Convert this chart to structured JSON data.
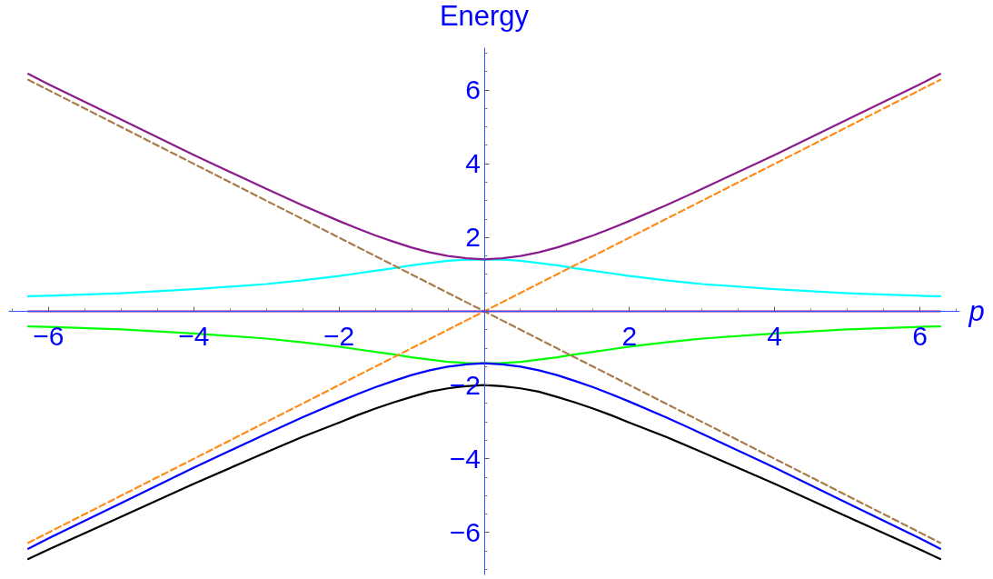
{
  "chart_data": {
    "type": "line",
    "xlabel": "p",
    "ylabel": "Energy",
    "x": [
      -6.28,
      -6,
      -5,
      -4,
      -3,
      -2.5,
      -2,
      -1.75,
      -1.5,
      -1.25,
      -1,
      -0.75,
      -0.5,
      -0.25,
      0,
      0.25,
      0.5,
      0.75,
      1,
      1.25,
      1.5,
      1.75,
      2,
      2.5,
      3,
      4,
      5,
      6,
      6.28
    ],
    "series": [
      {
        "color": "#00ffff",
        "values": [
          0.41,
          0.42,
          0.49,
          0.6,
          0.74,
          0.84,
          0.96,
          1.03,
          1.1,
          1.17,
          1.25,
          1.31,
          1.37,
          1.4,
          1.41,
          1.4,
          1.37,
          1.31,
          1.25,
          1.17,
          1.1,
          1.03,
          0.96,
          0.84,
          0.74,
          0.6,
          0.49,
          0.42,
          0.41
        ]
      },
      {
        "color": "#00ff00",
        "values": [
          -0.41,
          -0.42,
          -0.49,
          -0.6,
          -0.74,
          -0.84,
          -0.96,
          -1.03,
          -1.1,
          -1.17,
          -1.25,
          -1.31,
          -1.37,
          -1.4,
          -1.41,
          -1.4,
          -1.37,
          -1.31,
          -1.25,
          -1.17,
          -1.1,
          -1.03,
          -0.96,
          -0.84,
          -0.74,
          -0.6,
          -0.49,
          -0.42,
          -0.41
        ]
      },
      {
        "color": "#0000ff",
        "values": [
          -6.44,
          -6.16,
          -5.2,
          -4.24,
          -3.32,
          -2.87,
          -2.45,
          -2.25,
          -2.06,
          -1.89,
          -1.73,
          -1.6,
          -1.5,
          -1.44,
          -1.41,
          -1.44,
          -1.5,
          -1.6,
          -1.73,
          -1.89,
          -2.06,
          -2.25,
          -2.45,
          -2.87,
          -3.32,
          -4.24,
          -5.2,
          -6.16,
          -6.44
        ]
      },
      {
        "color": "#000000",
        "values": [
          -6.72,
          -6.46,
          -5.57,
          -4.68,
          -3.82,
          -3.4,
          -3.02,
          -2.82,
          -2.64,
          -2.47,
          -2.32,
          -2.18,
          -2.09,
          -2.03,
          -2.0,
          -2.03,
          -2.09,
          -2.18,
          -2.32,
          -2.47,
          -2.64,
          -2.82,
          -3.02,
          -3.4,
          -3.82,
          -4.68,
          -5.57,
          -6.46,
          -6.72
        ]
      },
      {
        "color": "#ff8c1a",
        "line_style": "dashed",
        "values": [
          -6.28,
          -6,
          -5,
          -4,
          -3,
          -2.5,
          -2,
          -1.75,
          -1.5,
          -1.25,
          -1,
          -0.75,
          -0.5,
          -0.25,
          0,
          0.25,
          0.5,
          0.75,
          1,
          1.25,
          1.5,
          1.75,
          2,
          2.5,
          3,
          4,
          5,
          6,
          6.28
        ]
      },
      {
        "color": "#a97b4b",
        "line_style": "dashed",
        "values": [
          6.28,
          6,
          5,
          4,
          3,
          2.5,
          2,
          1.75,
          1.5,
          1.25,
          1,
          0.75,
          0.5,
          0.25,
          0,
          -0.25,
          -0.5,
          -0.75,
          -1,
          -1.25,
          -1.5,
          -1.75,
          -2,
          -2.5,
          -3,
          -4,
          -5,
          -6,
          -6.28
        ]
      },
      {
        "color": "#8b1c8b",
        "values": [
          6.44,
          6.16,
          5.2,
          4.24,
          3.32,
          2.87,
          2.45,
          2.25,
          2.06,
          1.89,
          1.73,
          1.6,
          1.5,
          1.44,
          1.41,
          1.44,
          1.5,
          1.6,
          1.73,
          1.89,
          2.06,
          2.25,
          2.45,
          2.87,
          3.32,
          4.24,
          5.2,
          6.16,
          6.44
        ]
      },
      {
        "color": "#8b1c8b",
        "values": [
          0,
          0,
          0,
          0,
          0,
          0,
          0,
          0,
          0,
          0,
          0,
          0,
          0,
          0,
          0,
          0,
          0,
          0,
          0,
          0,
          0,
          0,
          0,
          0,
          0,
          0,
          0,
          0,
          0
        ]
      }
    ],
    "xlim": [
      -6.55,
      6.55
    ],
    "ylim": [
      -7.15,
      7.15
    ],
    "xticks": [
      {
        "value": -6.5,
        "label": null
      },
      {
        "value": -6,
        "label": "−6"
      },
      {
        "value": -5.5,
        "label": null
      },
      {
        "value": -5,
        "label": null
      },
      {
        "value": -4.5,
        "label": null
      },
      {
        "value": -4,
        "label": "−4"
      },
      {
        "value": -3.5,
        "label": null
      },
      {
        "value": -3,
        "label": null
      },
      {
        "value": -2.5,
        "label": null
      },
      {
        "value": -2,
        "label": "−2"
      },
      {
        "value": -1.5,
        "label": null
      },
      {
        "value": -1,
        "label": null
      },
      {
        "value": -0.5,
        "label": null
      },
      {
        "value": 0.5,
        "label": null
      },
      {
        "value": 1,
        "label": null
      },
      {
        "value": 1.5,
        "label": null
      },
      2,
      {
        "value": 2.5,
        "label": null
      },
      {
        "value": 3,
        "label": null
      },
      {
        "value": 3.5,
        "label": null
      },
      4,
      {
        "value": 4.5,
        "label": null
      },
      {
        "value": 5,
        "label": null
      },
      {
        "value": 5.5,
        "label": null
      },
      6,
      {
        "value": 6.5,
        "label": null
      }
    ],
    "yticks": [
      {
        "value": -7,
        "label": null
      },
      {
        "value": -6.5,
        "label": null
      },
      {
        "value": -6,
        "label": "−6"
      },
      {
        "value": -5.5,
        "label": null
      },
      {
        "value": -5,
        "label": null
      },
      {
        "value": -4.5,
        "label": null
      },
      {
        "value": -4,
        "label": "−4"
      },
      {
        "value": -3.5,
        "label": null
      },
      {
        "value": -3,
        "label": null
      },
      {
        "value": -2.5,
        "label": null
      },
      {
        "value": -2,
        "label": "−2"
      },
      {
        "value": -1.5,
        "label": null
      },
      {
        "value": -1,
        "label": null
      },
      {
        "value": -0.5,
        "label": null
      },
      {
        "value": 0.5,
        "label": null
      },
      {
        "value": 1,
        "label": null
      },
      {
        "value": 1.5,
        "label": null
      },
      2,
      {
        "value": 2.5,
        "label": null
      },
      {
        "value": 3,
        "label": null
      },
      {
        "value": 3.5,
        "label": null
      },
      4,
      {
        "value": 4.5,
        "label": null
      },
      {
        "value": 5,
        "label": null
      },
      {
        "value": 5.5,
        "label": null
      },
      6,
      {
        "value": 6.5,
        "label": null
      },
      {
        "value": 7,
        "label": null
      }
    ],
    "line_style": "solid",
    "grid": false
  }
}
